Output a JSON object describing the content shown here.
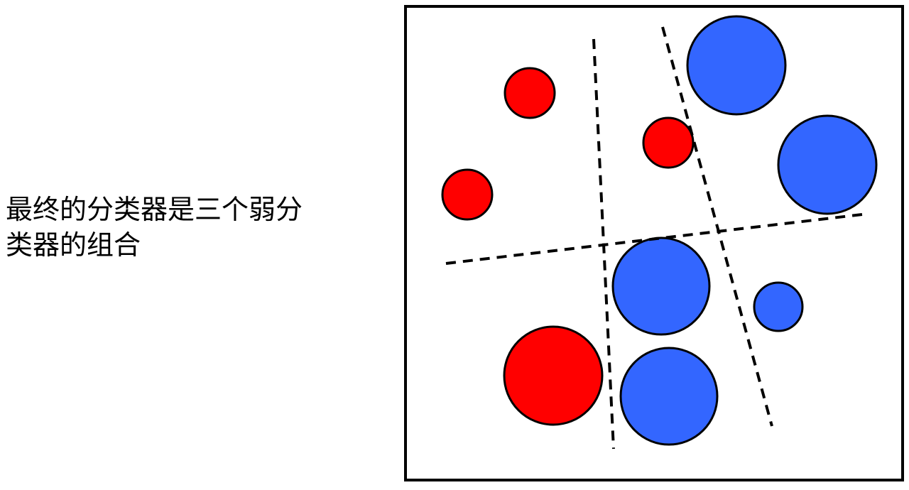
{
  "caption": {
    "line1": "最终的分类器是三个弱分",
    "line2": "类器的组合"
  },
  "colors": {
    "positive": "#ff0000",
    "negative": "#3366ff",
    "outline": "#000000",
    "frame": "#000000",
    "boundary": "#000000"
  },
  "diagram": {
    "points": [
      {
        "class": "positive",
        "weight": "small"
      },
      {
        "class": "positive",
        "weight": "small"
      },
      {
        "class": "positive",
        "weight": "small"
      },
      {
        "class": "positive",
        "weight": "large"
      },
      {
        "class": "negative",
        "weight": "large"
      },
      {
        "class": "negative",
        "weight": "large"
      },
      {
        "class": "negative",
        "weight": "large"
      },
      {
        "class": "negative",
        "weight": "large"
      },
      {
        "class": "negative",
        "weight": "small"
      }
    ],
    "boundaries": [
      {
        "orientation": "near-vertical",
        "style": "dashed"
      },
      {
        "orientation": "near-vertical",
        "style": "dashed"
      },
      {
        "orientation": "near-horizontal",
        "style": "dashed"
      }
    ]
  }
}
